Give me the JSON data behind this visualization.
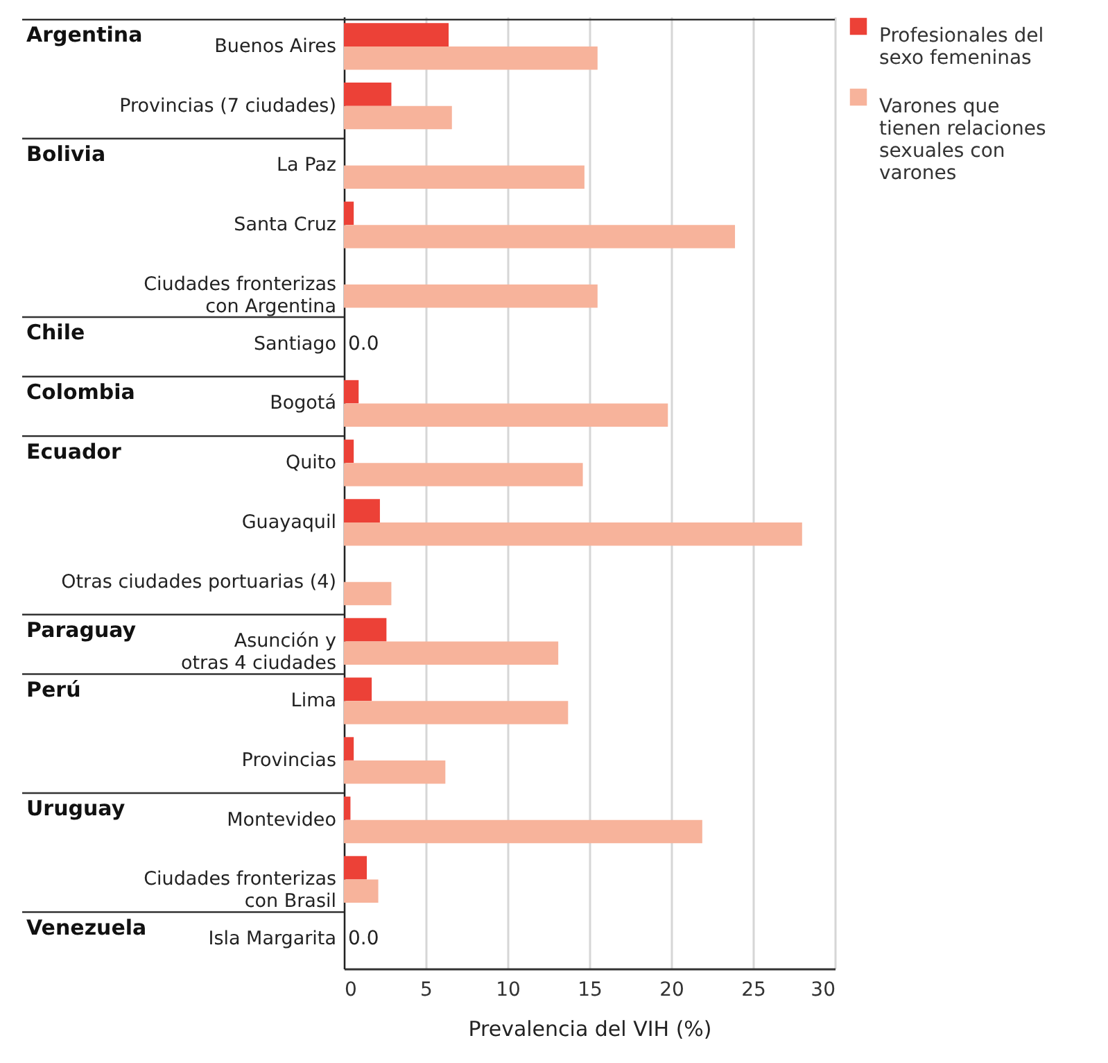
{
  "chart_data": {
    "type": "bar",
    "orientation": "horizontal",
    "xlabel": "Prevalencia del VIH (%)",
    "categories": [
      "Buenos Aires",
      "Provincias (7 ciudades)",
      "La Paz",
      "Santa Cruz",
      "Ciudades fronterizas\ncon Argentina",
      "Santiago",
      "Bogotá",
      "Quito",
      "Guayaquil",
      "Otras ciudades portuarias (4)",
      "Asunción y\notras 4 ciudades",
      "Lima",
      "Provincias",
      "Montevideo",
      "Ciudades fronterizas\ncon Brasil",
      "Isla Margarita"
    ],
    "series": [
      {
        "name": "Profesionales del\nsexo femeninas",
        "color": "#ec4137",
        "values": [
          6.4,
          2.9,
          null,
          0.6,
          null,
          null,
          0.9,
          0.6,
          2.2,
          null,
          2.6,
          1.7,
          0.6,
          0.4,
          1.4,
          null
        ]
      },
      {
        "name": "Varones que\ntienen relaciones\nsexuales con\nvarones",
        "color": "#f7b39b",
        "values": [
          15.5,
          6.6,
          14.7,
          23.9,
          15.5,
          0,
          19.8,
          14.6,
          28.0,
          2.9,
          13.1,
          13.7,
          6.2,
          21.9,
          2.1,
          0
        ],
        "value_labels": [
          null,
          null,
          null,
          null,
          null,
          "0.0",
          null,
          null,
          null,
          null,
          null,
          null,
          null,
          null,
          null,
          "0.0"
        ]
      }
    ],
    "annotations": [
      "Argentina",
      "Bolivia",
      "Chile",
      "Colombia",
      "Ecuador",
      "Paraguay",
      "Perú",
      "Uruguay",
      "Venezuela"
    ],
    "xlim": [
      0,
      30
    ],
    "xticks": [
      0,
      5,
      10,
      15,
      20,
      25,
      30
    ],
    "grid": "x",
    "legend": "top right"
  }
}
